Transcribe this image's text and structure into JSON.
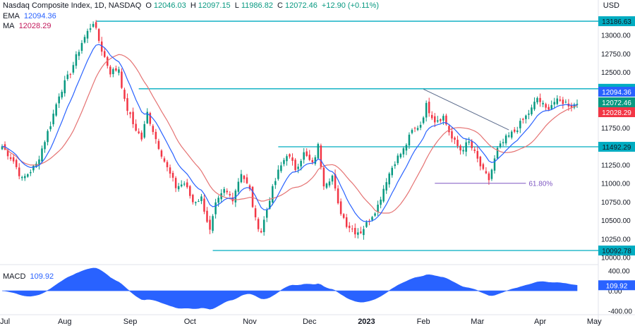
{
  "header": {
    "title": "Nasdaq Composite Index, 1D, NASDAQ",
    "ohlc": [
      {
        "label": "O",
        "value": "12046.03"
      },
      {
        "label": "H",
        "value": "12097.15"
      },
      {
        "label": "L",
        "value": "11986.82"
      },
      {
        "label": "C",
        "value": "12072.46"
      }
    ],
    "change": "+12.90 (+0.11%)",
    "ema_label": "EMA",
    "ema_value": "12094.36",
    "ma_label": "MA",
    "ma_value": "12028.29",
    "currency": "USD"
  },
  "macd_panel": {
    "label": "MACD",
    "value": "109.92",
    "ticks": [
      "400.00",
      "0.00",
      "-400.00"
    ],
    "tick_values": [
      400,
      0,
      -400
    ],
    "range": [
      -450,
      480
    ]
  },
  "colors": {
    "up": "#089981",
    "down": "#f23645",
    "ema": "#2962ff",
    "ma": "#e57373",
    "level": "#00acc1",
    "fib": "#7e57c2",
    "macd": "#2962ff"
  },
  "chart_data": {
    "type": "candlestick",
    "y_range": [
      9950,
      13330
    ],
    "y_ticks": [
      10000,
      10250,
      10500,
      10750,
      11000,
      11250,
      11500,
      11750,
      12000,
      12250,
      12500,
      12750,
      13000,
      13250
    ],
    "y_tick_labels": [
      "10000.00",
      "10250.00",
      "10500.00",
      "10750.00",
      "11000.00",
      "11250.00",
      "11500.00",
      "11750.00",
      "12000.00",
      "12250.00",
      "12500.00",
      "12750.00",
      "13000.00",
      "13250.00"
    ],
    "x_ticks": [
      {
        "label": "Jul",
        "index": 1
      },
      {
        "label": "Aug",
        "index": 22
      },
      {
        "label": "Sep",
        "index": 45
      },
      {
        "label": "Oct",
        "index": 66
      },
      {
        "label": "Nov",
        "index": 87
      },
      {
        "label": "Dec",
        "index": 108
      },
      {
        "label": "2023",
        "index": 128,
        "bold": true
      },
      {
        "label": "Feb",
        "index": 148
      },
      {
        "label": "Mar",
        "index": 167
      },
      {
        "label": "Apr",
        "index": 189
      },
      {
        "label": "May",
        "index": 208
      }
    ],
    "n_bars": 203,
    "price_anchors": [
      [
        0,
        11500
      ],
      [
        4,
        11300
      ],
      [
        7,
        11050
      ],
      [
        12,
        11250
      ],
      [
        17,
        11800
      ],
      [
        20,
        12200
      ],
      [
        24,
        12500
      ],
      [
        28,
        12900
      ],
      [
        32,
        13180
      ],
      [
        35,
        12800
      ],
      [
        38,
        12500
      ],
      [
        41,
        12550
      ],
      [
        43,
        12100
      ],
      [
        46,
        11800
      ],
      [
        49,
        11600
      ],
      [
        51,
        11950
      ],
      [
        54,
        11600
      ],
      [
        58,
        11200
      ],
      [
        61,
        10950
      ],
      [
        64,
        11000
      ],
      [
        67,
        10750
      ],
      [
        70,
        10800
      ],
      [
        73,
        10350
      ],
      [
        75,
        10700
      ],
      [
        78,
        10900
      ],
      [
        81,
        10800
      ],
      [
        84,
        11150
      ],
      [
        87,
        10900
      ],
      [
        89,
        10500
      ],
      [
        91,
        10350
      ],
      [
        94,
        10800
      ],
      [
        97,
        11150
      ],
      [
        100,
        11400
      ],
      [
        103,
        11200
      ],
      [
        106,
        11400
      ],
      [
        109,
        11250
      ],
      [
        111,
        11500
      ],
      [
        113,
        11000
      ],
      [
        116,
        11100
      ],
      [
        118,
        10700
      ],
      [
        121,
        10450
      ],
      [
        124,
        10350
      ],
      [
        126,
        10350
      ],
      [
        128,
        10450
      ],
      [
        132,
        10700
      ],
      [
        135,
        11050
      ],
      [
        138,
        11300
      ],
      [
        141,
        11450
      ],
      [
        144,
        11700
      ],
      [
        147,
        11800
      ],
      [
        149,
        12050
      ],
      [
        152,
        11850
      ],
      [
        155,
        11900
      ],
      [
        158,
        11600
      ],
      [
        161,
        11450
      ],
      [
        164,
        11550
      ],
      [
        166,
        11400
      ],
      [
        169,
        11150
      ],
      [
        171,
        11050
      ],
      [
        174,
        11450
      ],
      [
        177,
        11600
      ],
      [
        180,
        11700
      ],
      [
        183,
        11850
      ],
      [
        186,
        12000
      ],
      [
        188,
        12150
      ],
      [
        191,
        12000
      ],
      [
        194,
        12100
      ],
      [
        197,
        12100
      ],
      [
        200,
        12050
      ],
      [
        202,
        12072
      ]
    ],
    "series": [
      {
        "name": "EMA",
        "value": 12094.36
      },
      {
        "name": "MA",
        "value": 12028.29
      }
    ],
    "levels": [
      {
        "value": 13186.63,
        "label": "13186.63",
        "from_index": 33
      },
      {
        "value": 12274.79,
        "label": "12274.79",
        "from_index": 48
      },
      {
        "value": 11492.29,
        "label": "11492.29",
        "from_index": 97
      },
      {
        "value": 10092.78,
        "label": "10092.78",
        "from_index": 74
      }
    ],
    "price_tags": [
      {
        "value": 12094.36,
        "label": "12094.36",
        "color": "#2962ff"
      },
      {
        "value": 12072.46,
        "label": "12072.46",
        "color": "#089981"
      },
      {
        "value": 12028.29,
        "label": "12028.29",
        "color": "#f23645"
      }
    ],
    "trendline": {
      "from": [
        148,
        12270
      ],
      "to": [
        178,
        11720
      ]
    },
    "fib_line": {
      "value": 11000,
      "from_index": 152,
      "to_index": 184,
      "label": "61.80%"
    }
  }
}
